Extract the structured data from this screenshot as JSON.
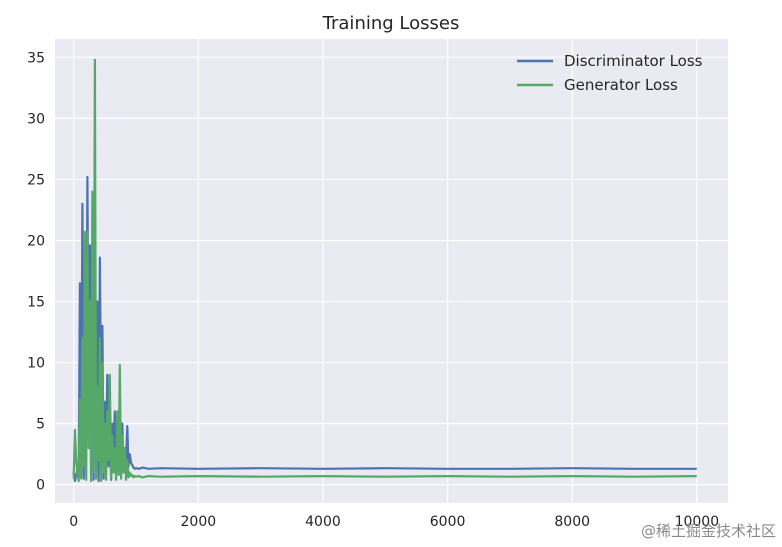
{
  "chart_data": {
    "type": "line",
    "title": "Training Losses",
    "xlabel": "",
    "ylabel": "",
    "xlim": [
      -300,
      10500
    ],
    "ylim": [
      -1.5,
      36.5
    ],
    "xticks": [
      0,
      2000,
      4000,
      6000,
      8000,
      10000
    ],
    "xtick_labels": [
      "0",
      "2000",
      "4000",
      "6000",
      "8000",
      "10000"
    ],
    "yticks": [
      0,
      5,
      10,
      15,
      20,
      25,
      30,
      35
    ],
    "ytick_labels": [
      "0",
      "5",
      "10",
      "15",
      "20",
      "25",
      "30",
      "35"
    ],
    "grid": true,
    "background": "#EAEAF2",
    "legend_position": "top-right",
    "series": [
      {
        "name": "Discriminator Loss",
        "color": "#4C72B0",
        "x": [
          0,
          20,
          40,
          60,
          80,
          100,
          120,
          140,
          160,
          180,
          200,
          220,
          240,
          260,
          280,
          300,
          320,
          340,
          360,
          380,
          400,
          420,
          440,
          460,
          480,
          500,
          520,
          540,
          560,
          580,
          600,
          620,
          640,
          660,
          680,
          700,
          720,
          740,
          760,
          780,
          800,
          820,
          840,
          860,
          880,
          900,
          920,
          940,
          960,
          980,
          1000,
          1050,
          1100,
          1200,
          1400,
          2000,
          3000,
          4000,
          5000,
          6000,
          7000,
          8000,
          9000,
          10000
        ],
        "y": [
          1.0,
          0.3,
          0.8,
          1.2,
          0.6,
          16.5,
          2.0,
          23.0,
          0.5,
          12.0,
          3.0,
          25.2,
          6.8,
          19.6,
          1.0,
          8.0,
          0.4,
          11.0,
          2.0,
          15.0,
          0.3,
          18.6,
          5.0,
          13.0,
          0.5,
          6.8,
          2.0,
          9.0,
          1.5,
          7.0,
          0.4,
          5.0,
          2.5,
          6.0,
          1.2,
          4.0,
          0.8,
          3.5,
          2.0,
          5.0,
          1.0,
          3.0,
          2.0,
          4.8,
          1.5,
          2.5,
          1.8,
          1.6,
          1.4,
          1.3,
          1.35,
          1.3,
          1.4,
          1.3,
          1.35,
          1.3,
          1.35,
          1.3,
          1.35,
          1.3,
          1.3,
          1.35,
          1.3,
          1.3
        ]
      },
      {
        "name": "Generator Loss",
        "color": "#55A868",
        "x": [
          0,
          20,
          40,
          60,
          80,
          100,
          120,
          140,
          160,
          180,
          200,
          220,
          240,
          260,
          280,
          300,
          320,
          340,
          360,
          380,
          400,
          420,
          440,
          460,
          480,
          500,
          520,
          540,
          560,
          580,
          600,
          620,
          640,
          660,
          680,
          700,
          720,
          740,
          760,
          780,
          800,
          820,
          840,
          860,
          880,
          900,
          920,
          940,
          960,
          980,
          1000,
          1050,
          1100,
          1200,
          1400,
          2000,
          3000,
          4000,
          5000,
          6000,
          7000,
          8000,
          9000,
          10000
        ],
        "y": [
          0.5,
          4.5,
          2.0,
          1.0,
          0.3,
          7.0,
          0.5,
          12.0,
          1.5,
          20.7,
          0.4,
          20.7,
          3.0,
          15.0,
          0.3,
          24.0,
          1.0,
          34.8,
          0.5,
          8.0,
          2.0,
          12.0,
          0.3,
          10.0,
          1.0,
          5.0,
          0.4,
          6.0,
          2.0,
          9.0,
          0.5,
          4.0,
          1.0,
          3.0,
          0.4,
          6.0,
          0.8,
          9.8,
          0.5,
          4.0,
          1.0,
          3.0,
          0.4,
          2.0,
          0.6,
          1.0,
          0.7,
          0.8,
          0.6,
          0.7,
          0.65,
          0.7,
          0.6,
          0.7,
          0.65,
          0.7,
          0.65,
          0.7,
          0.65,
          0.7,
          0.65,
          0.7,
          0.65,
          0.7
        ]
      }
    ]
  },
  "watermark": "@稀土掘金技术社区"
}
